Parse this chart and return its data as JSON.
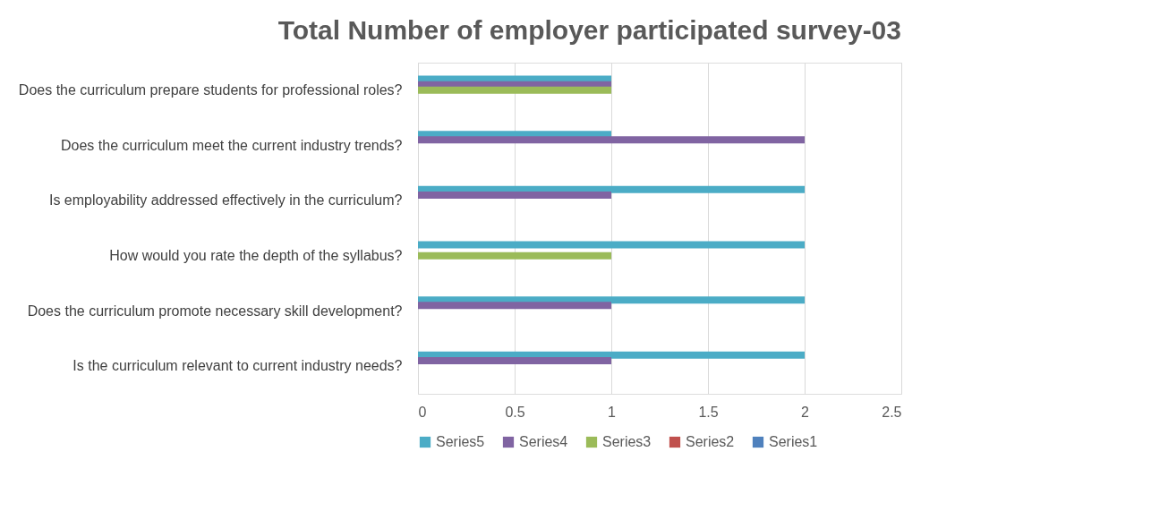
{
  "chart_data": {
    "type": "bar",
    "orientation": "horizontal",
    "title": "Total Number of employer participated survey-03",
    "categories": [
      "Does the curriculum prepare students for professional roles?",
      "Does the curriculum meet the current industry trends?",
      "Is employability addressed effectively in the curriculum?",
      "How would you rate the depth of the syllabus?",
      "Does the curriculum promote necessary skill development?",
      "Is the curriculum relevant to current industry needs?"
    ],
    "series": [
      {
        "name": "Series5",
        "color": "#4bacc6",
        "values": [
          1,
          1,
          2,
          2,
          2,
          2
        ]
      },
      {
        "name": "Series4",
        "color": "#8064a2",
        "values": [
          1,
          2,
          1,
          0,
          1,
          1
        ]
      },
      {
        "name": "Series3",
        "color": "#9bbb59",
        "values": [
          1,
          0,
          0,
          1,
          0,
          0
        ]
      },
      {
        "name": "Series2",
        "color": "#c0504d",
        "values": [
          0,
          0,
          0,
          0,
          0,
          0
        ]
      },
      {
        "name": "Series1",
        "color": "#4f81bd",
        "values": [
          0,
          0,
          0,
          0,
          0,
          0
        ]
      }
    ],
    "xlim": [
      0,
      2.5
    ],
    "xticks": [
      0,
      0.5,
      1,
      1.5,
      2,
      2.5
    ],
    "grid": "x",
    "legend": "bottom"
  }
}
